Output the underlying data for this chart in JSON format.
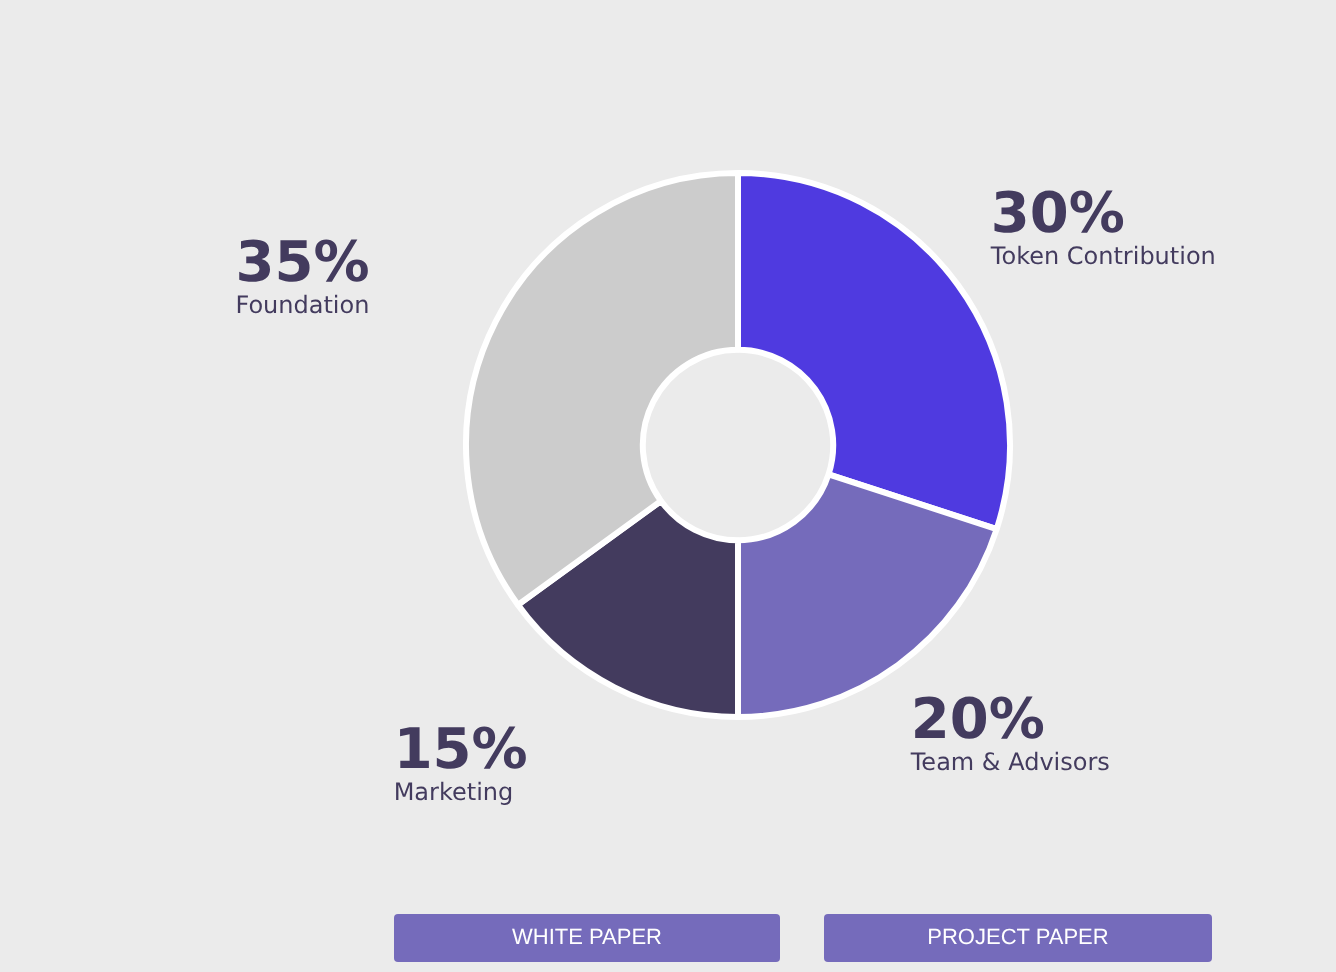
{
  "chart_data": {
    "type": "donut",
    "categories": [
      "Token Contribution",
      "Team & Advisors",
      "Marketing",
      "Foundation"
    ],
    "values": [
      30,
      20,
      15,
      35
    ],
    "colors": [
      "#4f3ae0",
      "#756bbb",
      "#433b5e",
      "#cccccc"
    ],
    "value_labels": [
      "30%",
      "20%",
      "15%",
      "35%"
    ],
    "legend": false,
    "annotations": [
      "WHITE PAPER",
      "PROJECT PAPER"
    ]
  }
}
